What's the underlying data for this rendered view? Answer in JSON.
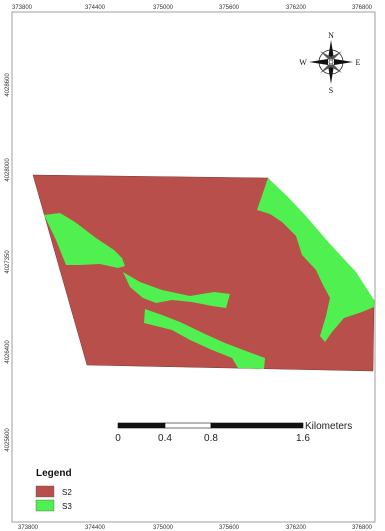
{
  "map": {
    "x_ticks": [
      "373800",
      "374400",
      "375000",
      "375600",
      "376200",
      "376800"
    ],
    "y_ticks": [
      "4028600",
      "4028000",
      "4027350",
      "4026400",
      "4025600"
    ]
  },
  "zones": [
    {
      "label": "S2",
      "color": "#b84f4a"
    },
    {
      "label": "S3",
      "color": "#4ff04f"
    }
  ],
  "compass": {
    "n": "N",
    "s": "S",
    "e": "E",
    "w": "W"
  },
  "scale_bar": {
    "unit": "Kilometers",
    "ticks": [
      "0",
      "0.4",
      "0.8",
      "1.6"
    ]
  },
  "legend": {
    "title": "Legend",
    "items": [
      {
        "label": "S2",
        "color": "#b84f4a"
      },
      {
        "label": "S3",
        "color": "#4ff04f"
      }
    ]
  }
}
